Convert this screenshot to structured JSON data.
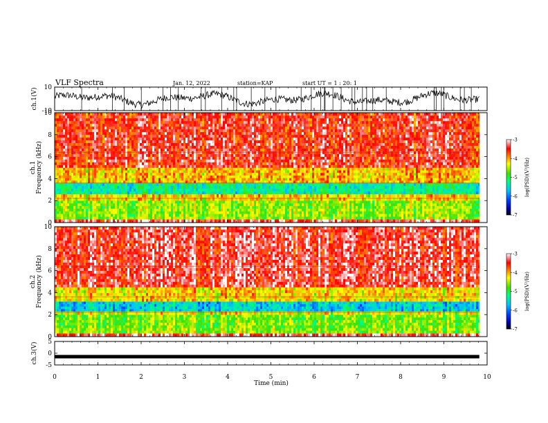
{
  "header": {
    "title": "VLF Spectra",
    "date": "Jan. 12, 2022",
    "station": "station=KAP",
    "start_ut": "start UT =  1 : 20: 1"
  },
  "chart_data": [
    {
      "type": "line",
      "panel": "ch1-waveform",
      "ylabel": "ch.1(V)",
      "ylim": [
        -10,
        10
      ],
      "y_ticklabels": [
        "10",
        "-10"
      ],
      "xlim": [
        0,
        10
      ],
      "x_ticks": [
        0,
        1,
        2,
        3,
        4,
        5,
        6,
        7,
        8,
        9,
        10
      ],
      "data_end_min": 9.82,
      "color": "#000000"
    },
    {
      "type": "heatmap",
      "panel": "ch1-spectrogram",
      "ylabel": "ch.1 Frequency (kHz)",
      "ylim": [
        0,
        10
      ],
      "y_ticklabels": [
        "0",
        "2",
        "4",
        "6",
        "8",
        "10"
      ],
      "xlim": [
        0,
        10
      ],
      "data_end_min": 9.82,
      "band_levels": [
        {
          "f0": 0.0,
          "f1": 0.3,
          "log_psd": -3.3
        },
        {
          "f0": 0.3,
          "f1": 0.8,
          "log_psd": -4.6
        },
        {
          "f0": 0.8,
          "f1": 2.0,
          "log_psd": -4.6
        },
        {
          "f0": 2.0,
          "f1": 2.6,
          "log_psd": -4.2
        },
        {
          "f0": 2.6,
          "f1": 3.6,
          "log_psd": -5.3
        },
        {
          "f0": 3.6,
          "f1": 5.0,
          "log_psd": -4.1
        },
        {
          "f0": 5.0,
          "f1": 10.0,
          "log_psd": -3.5
        }
      ],
      "colorbar": {
        "label": "log(PSD)(V²/Hz)",
        "ticks": [
          "-3",
          "-4",
          "-5",
          "-6",
          "-7"
        ],
        "range": [
          -7,
          -3
        ]
      }
    },
    {
      "type": "heatmap",
      "panel": "ch2-spectrogram",
      "ylabel": "ch.2 Frequency (kHz)",
      "ylim": [
        0,
        10
      ],
      "y_ticklabels": [
        "0",
        "2",
        "4",
        "6",
        "8",
        "10"
      ],
      "xlim": [
        0,
        10
      ],
      "data_end_min": 9.82,
      "band_levels": [
        {
          "f0": 0.0,
          "f1": 0.3,
          "log_psd": -3.3
        },
        {
          "f0": 0.3,
          "f1": 0.8,
          "log_psd": -4.6
        },
        {
          "f0": 0.8,
          "f1": 2.0,
          "log_psd": -4.7
        },
        {
          "f0": 2.0,
          "f1": 2.3,
          "log_psd": -4.3
        },
        {
          "f0": 2.3,
          "f1": 3.2,
          "log_psd": -5.6
        },
        {
          "f0": 3.2,
          "f1": 4.5,
          "log_psd": -4.2
        },
        {
          "f0": 4.5,
          "f1": 10.0,
          "log_psd": -3.4
        }
      ],
      "colorbar": {
        "label": "log(PSD)(V²/Hz)",
        "ticks": [
          "-3",
          "-4",
          "-5",
          "-6",
          "-7"
        ],
        "range": [
          -7,
          -3
        ]
      }
    },
    {
      "type": "line",
      "panel": "ch3-waveform",
      "ylabel": "ch.3(V)",
      "ylim": [
        -5,
        5
      ],
      "y_ticklabels": [
        "5",
        "0",
        "-5"
      ],
      "xlim": [
        0,
        10
      ],
      "x_ticks": [
        0,
        1,
        2,
        3,
        4,
        5,
        6,
        7,
        8,
        9,
        10
      ],
      "xlabel": "Time (min)",
      "data_end_min": 9.82,
      "level": 0,
      "color": "#000000"
    }
  ],
  "x_ticklabels": [
    "0",
    "1",
    "2",
    "3",
    "4",
    "5",
    "6",
    "7",
    "8",
    "9",
    "10"
  ]
}
